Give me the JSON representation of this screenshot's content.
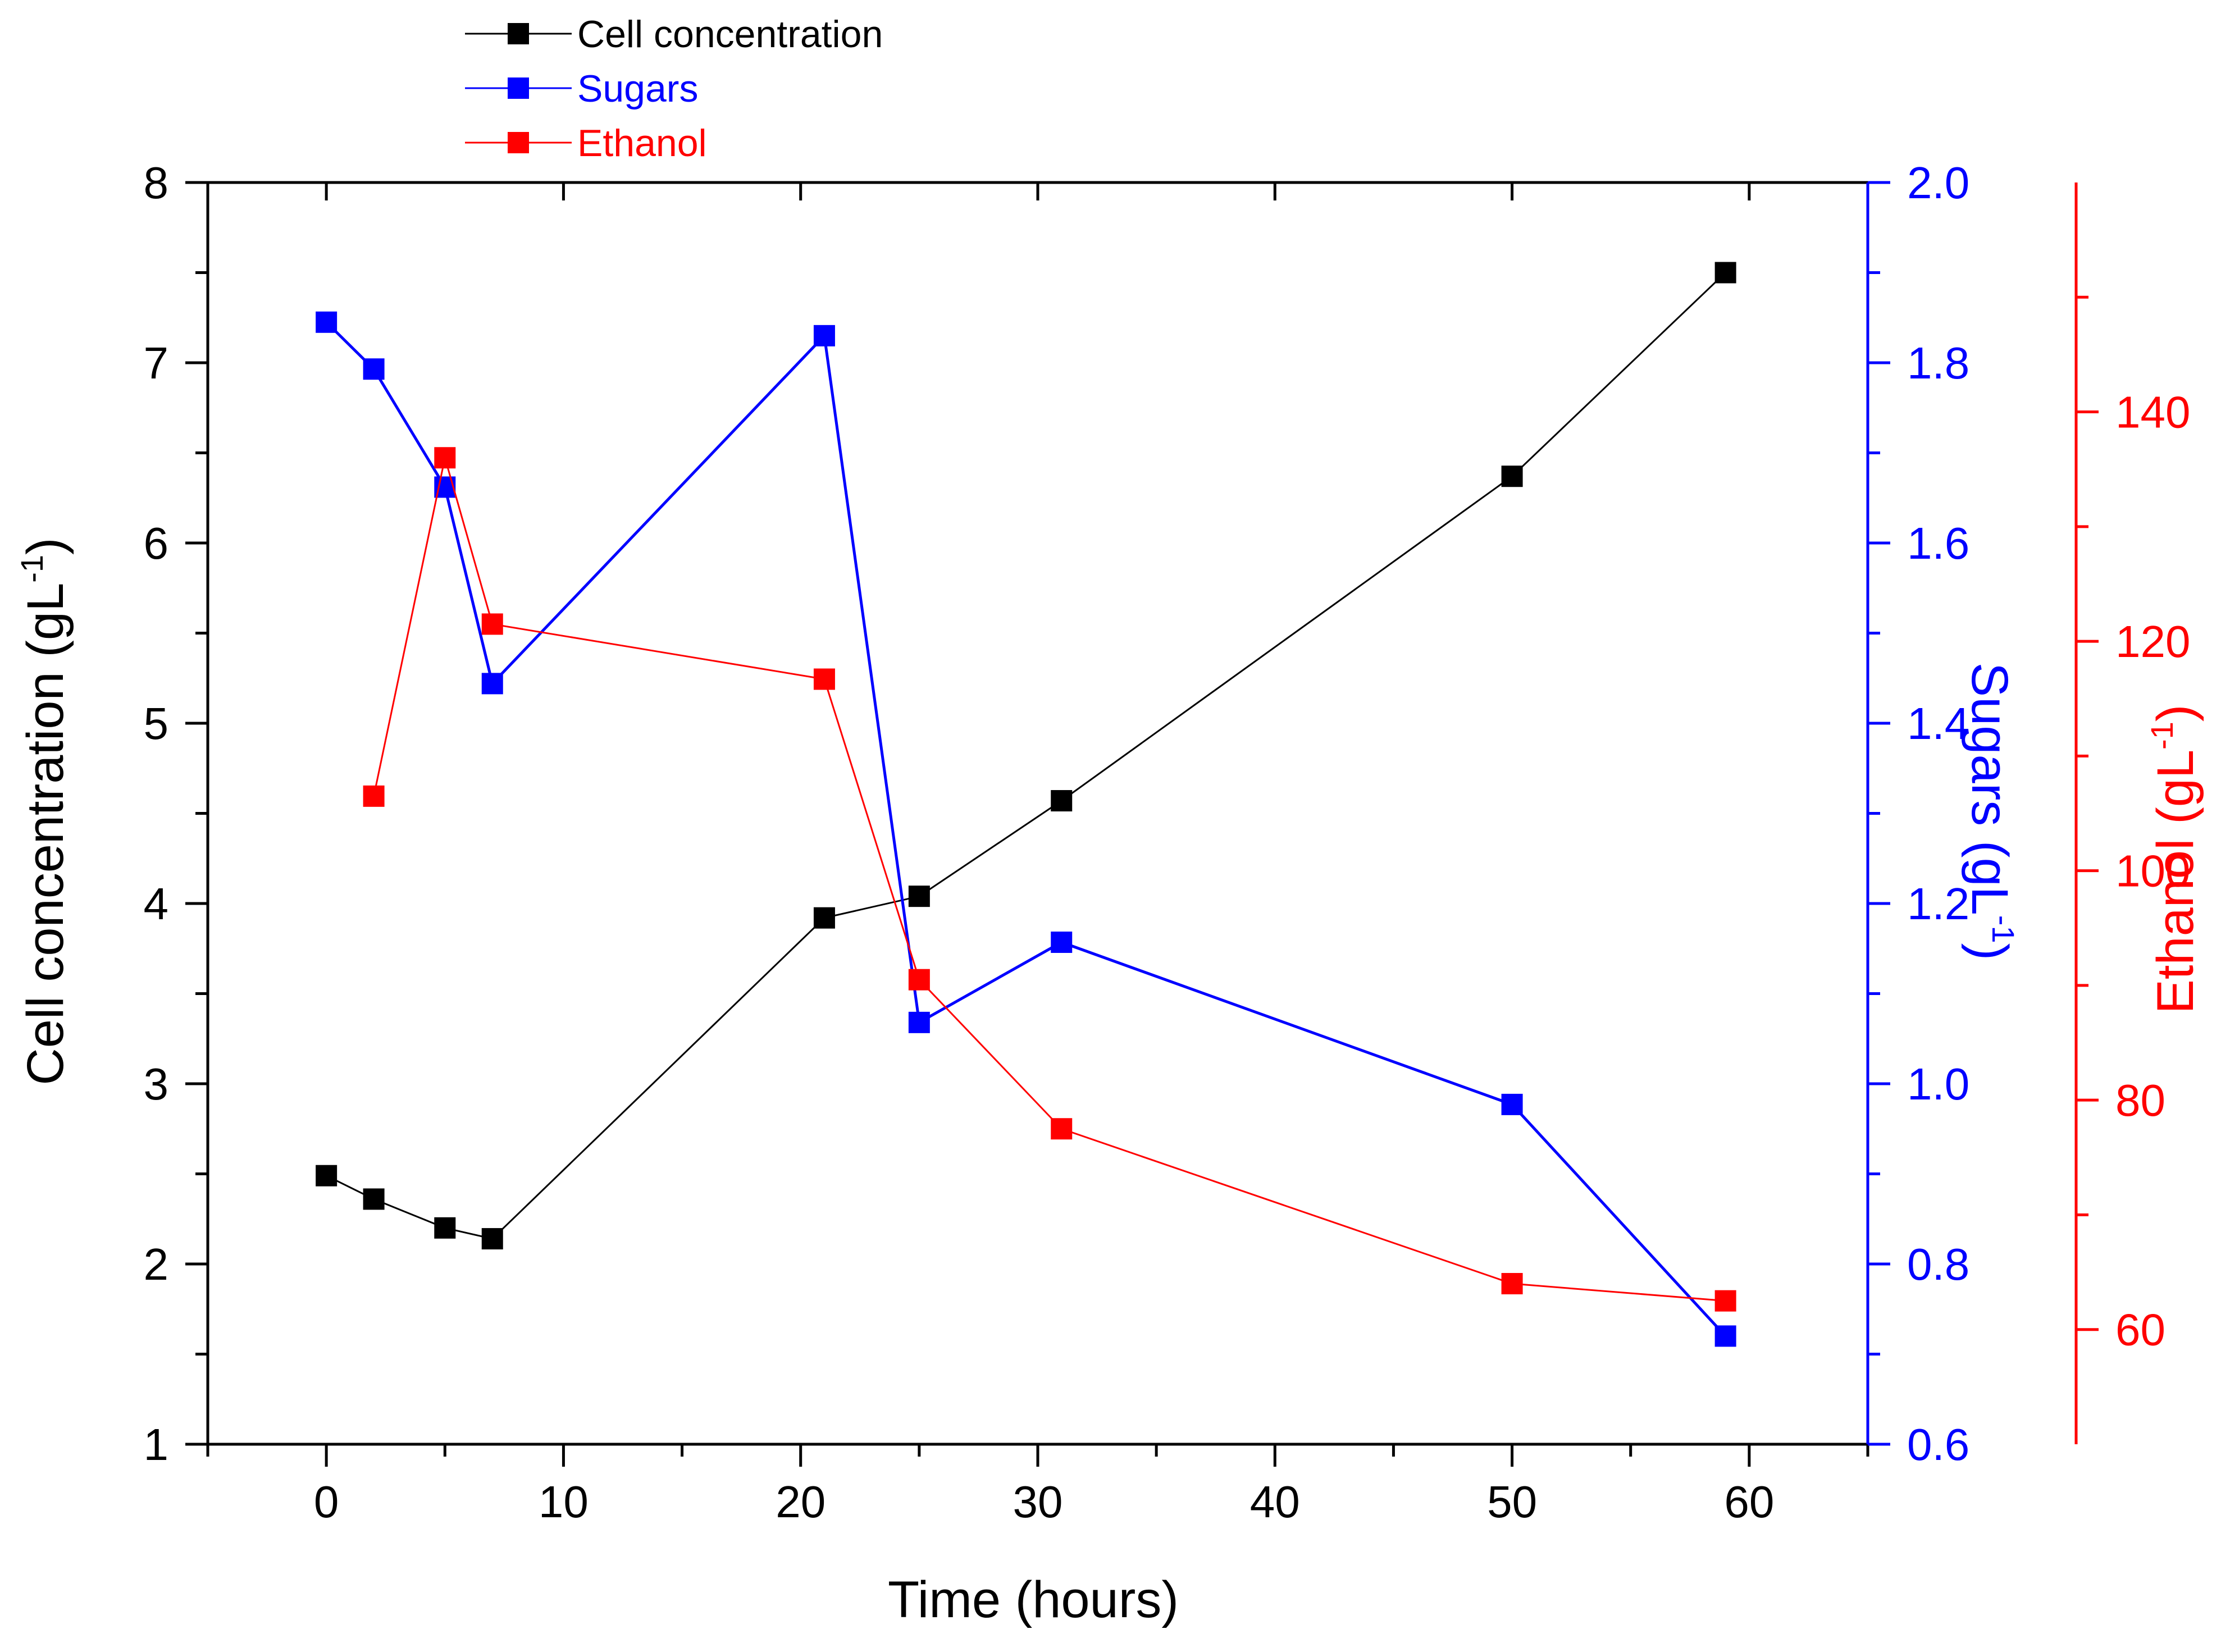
{
  "chart_data": {
    "type": "line",
    "title": "",
    "xlabel": "Time (hours)",
    "xlim": [
      -5,
      65
    ],
    "x_ticks": [
      "0",
      "10",
      "20",
      "30",
      "40",
      "50",
      "60"
    ],
    "axes": {
      "left": {
        "label_main": "Cell concentration (gL",
        "label_sup": "-1",
        "label_close": ")",
        "ylim": [
          1,
          8
        ],
        "ticks": [
          "1",
          "2",
          "3",
          "4",
          "5",
          "6",
          "7",
          "8"
        ],
        "color": "#000000"
      },
      "right1": {
        "label_main": "Sugars (gL",
        "label_sup": "-1",
        "label_close": ")",
        "ylim": [
          0.6,
          2.0
        ],
        "ticks": [
          "0.6",
          "0.8",
          "1.0",
          "1.2",
          "1.4",
          "1.6",
          "1.8",
          "2.0"
        ],
        "color": "#0000ff"
      },
      "right2": {
        "label_main": "Ethanol (gL",
        "label_sup": "-1",
        "label_close": ")",
        "ylim": [
          50,
          160
        ],
        "ticks": [
          "60",
          "80",
          "100",
          "120",
          "140"
        ],
        "color": "#ff0000"
      }
    },
    "series": [
      {
        "name": "Cell concentration",
        "axis": "left",
        "color": "#000000",
        "x": [
          0,
          2,
          5,
          7,
          21,
          25,
          31,
          50,
          59
        ],
        "y": [
          2.49,
          2.36,
          2.2,
          2.14,
          3.92,
          4.04,
          4.57,
          6.37,
          7.5
        ]
      },
      {
        "name": "Sugars",
        "axis": "right1",
        "color": "#0000ff",
        "x": [
          0,
          2,
          5,
          7,
          21,
          25,
          31,
          50,
          59
        ],
        "y": [
          1.845,
          1.793,
          1.662,
          1.444,
          1.83,
          1.068,
          1.157,
          0.977,
          0.72
        ]
      },
      {
        "name": "Ethanol",
        "axis": "right2",
        "color": "#ff0000",
        "x": [
          2,
          5,
          7,
          21,
          25,
          31,
          50,
          59
        ],
        "y": [
          106.5,
          136.0,
          121.5,
          116.7,
          90.5,
          77.5,
          64.0,
          62.5
        ]
      }
    ],
    "legend_position": "top-left"
  }
}
